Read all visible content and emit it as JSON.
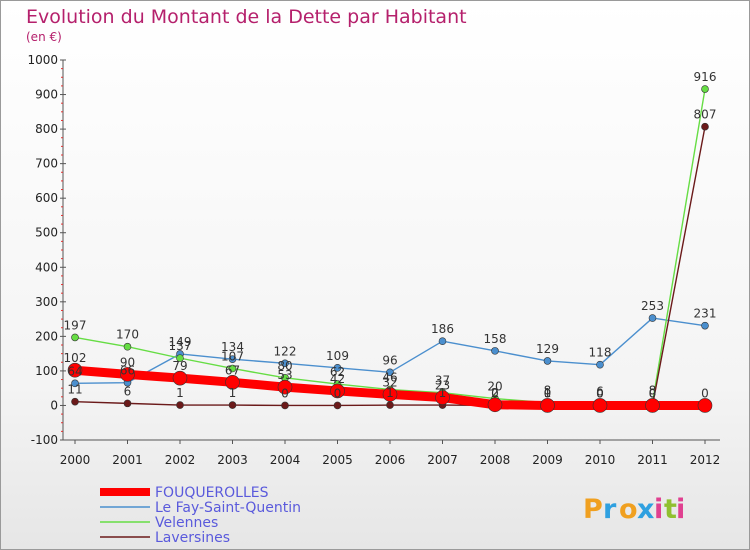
{
  "chart_data": {
    "type": "line",
    "title": "Evolution du Montant de la Dette par Habitant",
    "subtitle": "(en €)",
    "x": [
      "2000",
      "2001",
      "2002",
      "2003",
      "2004",
      "2005",
      "2006",
      "2007",
      "2008",
      "2009",
      "2010",
      "2011",
      "2012"
    ],
    "ylim": [
      -100,
      1000
    ],
    "yticks": [
      -100,
      0,
      100,
      200,
      300,
      400,
      500,
      600,
      700,
      800,
      900,
      1000
    ],
    "grid": false,
    "legend_position": "bottom-left",
    "series": [
      {
        "name": "FOUQUEROLLES",
        "color": "#ff0000",
        "values": [
          102,
          90,
          79,
          67,
          53,
          42,
          32,
          23,
          2,
          0,
          0,
          0,
          0
        ]
      },
      {
        "name": "Le Fay-Saint-Quentin",
        "color": "#4b8fce",
        "values": [
          64,
          66,
          149,
          134,
          122,
          109,
          96,
          186,
          158,
          129,
          118,
          253,
          231
        ]
      },
      {
        "name": "Velennes",
        "color": "#66dd44",
        "values": [
          197,
          170,
          137,
          107,
          80,
          62,
          46,
          37,
          20,
          8,
          6,
          8,
          916
        ]
      },
      {
        "name": "Laversines",
        "color": "#6b1a1a",
        "values": [
          11,
          6,
          1,
          1,
          0,
          0,
          1,
          1,
          0,
          1,
          0,
          0,
          807
        ]
      }
    ]
  },
  "branding": {
    "logo_letters": [
      "P",
      "r",
      "o",
      "x",
      "i",
      "t",
      "i"
    ]
  }
}
